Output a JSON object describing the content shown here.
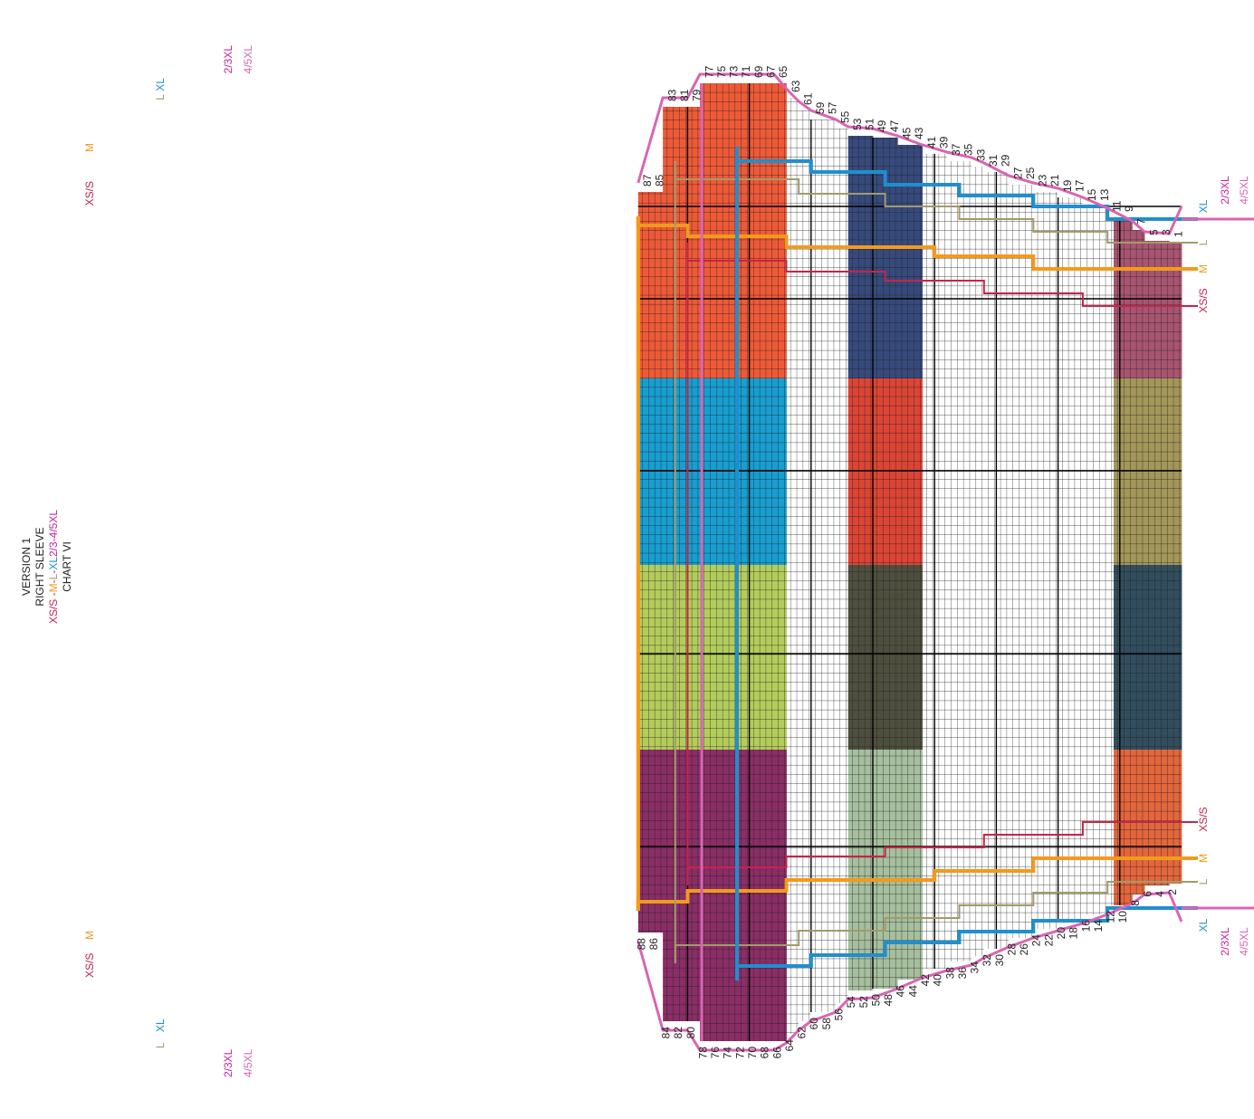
{
  "header": {
    "line1": "VERSION 1",
    "line2": "RIGHT SLEEVE",
    "line3_parts": [
      {
        "text": "XS/S -",
        "color": "#c8234a"
      },
      {
        "text": "M",
        "color": "#f39a1d"
      },
      {
        "text": "-",
        "color": "#c8234a"
      },
      {
        "text": "L",
        "color": "#a39a6a"
      },
      {
        "text": "-",
        "color": "#c8234a"
      },
      {
        "text": "XL",
        "color": "#1f8fcf"
      },
      {
        "text": "2/3-4/5XL",
        "color": "#c8239a"
      }
    ],
    "line4": "CHART VI"
  },
  "row_numbers": {
    "odd": [
      1,
      3,
      5,
      7,
      9,
      11,
      13,
      15,
      17,
      19,
      21,
      23,
      25,
      27,
      29,
      31,
      33,
      35,
      37,
      39,
      41,
      43,
      45,
      47,
      49,
      51,
      53,
      55,
      57,
      59,
      61,
      63,
      65,
      67,
      69,
      71,
      73,
      75,
      77,
      79,
      81,
      83,
      85,
      87
    ],
    "even": [
      2,
      4,
      6,
      8,
      10,
      12,
      14,
      16,
      18,
      20,
      22,
      24,
      26,
      28,
      30,
      32,
      34,
      36,
      38,
      40,
      42,
      44,
      46,
      48,
      50,
      52,
      54,
      56,
      58,
      60,
      62,
      64,
      66,
      68,
      70,
      72,
      74,
      76,
      78,
      80,
      82,
      84,
      86,
      88
    ]
  },
  "size_labels": {
    "xs_s": "XS/S",
    "m": "M",
    "l": "L",
    "xl": "XL",
    "xxl": "2/3XL",
    "xxxl": "4/5XL"
  },
  "size_colors": {
    "xs_s": "#c8234a",
    "m": "#f39a1d",
    "l": "#a39a6a",
    "xl": "#1f8fcf",
    "xxl": "#c8239a",
    "xxxl": "#d965b4"
  },
  "stripe_colors": {
    "orange_red": "#ee5a38",
    "blue": "#189ed0",
    "lime": "#b4cc5c",
    "plum": "#8a2e66",
    "navy": "#374a7c",
    "red": "#dc4535",
    "olive_dark": "#4f4f3f",
    "sage": "#a6bf9e",
    "mauve": "#a75570",
    "khaki": "#a3975a",
    "slate": "#324e5e",
    "orange": "#e3663c"
  },
  "color_bands": [
    {
      "rows": [
        79,
        88
      ],
      "blocks": [
        "orange_red",
        "blue",
        "lime",
        "plum"
      ]
    },
    {
      "rows": [
        65,
        78
      ],
      "blocks": [
        "orange_red",
        "blue",
        "lime",
        "plum"
      ]
    },
    {
      "rows": [
        43,
        54
      ],
      "blocks": [
        "navy",
        "red",
        "olive_dark",
        "sage"
      ]
    },
    {
      "rows": [
        1,
        11
      ],
      "blocks": [
        "mauve",
        "khaki",
        "slate",
        "orange"
      ]
    }
  ]
}
